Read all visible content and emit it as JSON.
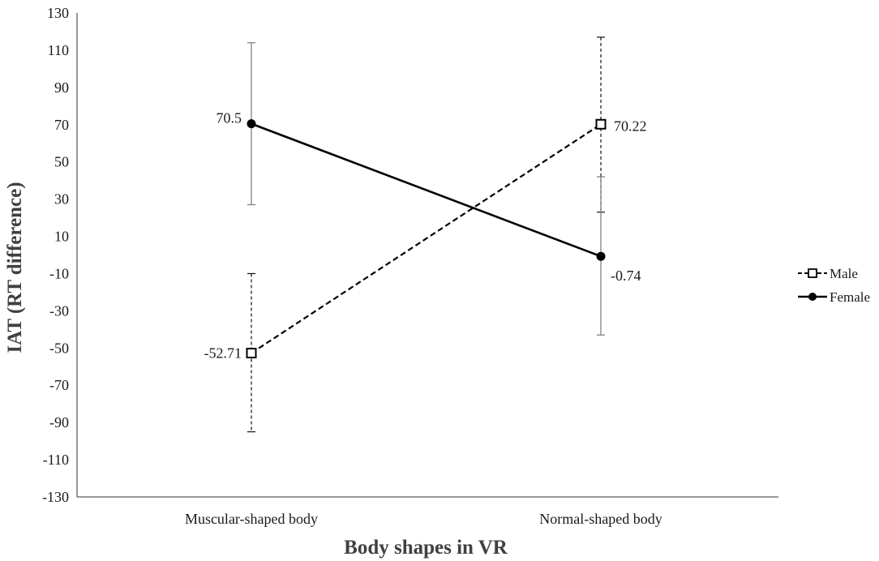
{
  "chart_data": {
    "type": "line",
    "title": "",
    "xlabel": "Body shapes in VR",
    "ylabel": "IAT (RT difference)",
    "categories": [
      "Muscular-shaped body",
      "Normal-shaped body"
    ],
    "ylim": [
      -130,
      130
    ],
    "yticks": [
      130,
      110,
      90,
      70,
      50,
      30,
      10,
      -10,
      -30,
      -50,
      -70,
      -90,
      -110,
      -130
    ],
    "grid": false,
    "legend_position": "right",
    "series": [
      {
        "name": "Male",
        "values": [
          -52.71,
          70.22
        ],
        "labels": [
          "-52.71",
          "70.22"
        ],
        "error_low": [
          -95,
          23
        ],
        "error_high": [
          -10,
          117
        ],
        "line_style": "dashed",
        "marker": "open-square",
        "color": "#000000"
      },
      {
        "name": "Female",
        "values": [
          70.5,
          -0.74
        ],
        "labels": [
          "70.5",
          "-0.74"
        ],
        "error_low": [
          27,
          -43
        ],
        "error_high": [
          114,
          42
        ],
        "line_style": "solid",
        "marker": "filled-circle",
        "color": "#000000"
      }
    ]
  }
}
